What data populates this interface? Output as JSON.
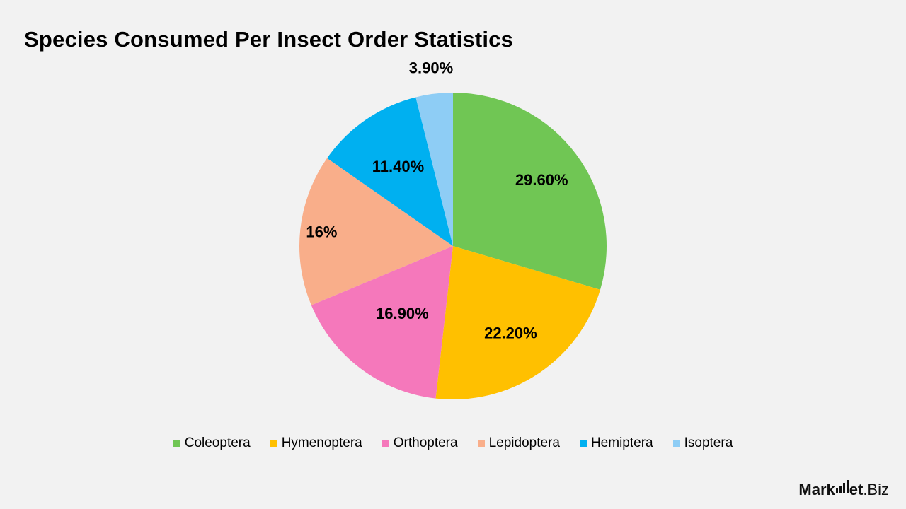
{
  "chart_data": {
    "type": "pie",
    "title": "Species Consumed Per Insect Order Statistics",
    "categories": [
      "Coleoptera",
      "Hymenoptera",
      "Orthoptera",
      "Lepidoptera",
      "Hemiptera",
      "Isoptera"
    ],
    "values": [
      29.6,
      22.2,
      16.9,
      16,
      11.4,
      3.9
    ],
    "labels": [
      "29.60%",
      "22.20%",
      "16.90%",
      "16%",
      "11.40%",
      "3.90%"
    ],
    "colors": [
      "#70c654",
      "#ffc000",
      "#f578bb",
      "#f9ae8a",
      "#00b0f0",
      "#8ecdf5"
    ],
    "start_angle": "12 o'clock",
    "direction": "clockwise",
    "legend_position": "bottom"
  },
  "brand": {
    "part1": "Mark",
    "part2": "et",
    "part3": ".Biz"
  }
}
